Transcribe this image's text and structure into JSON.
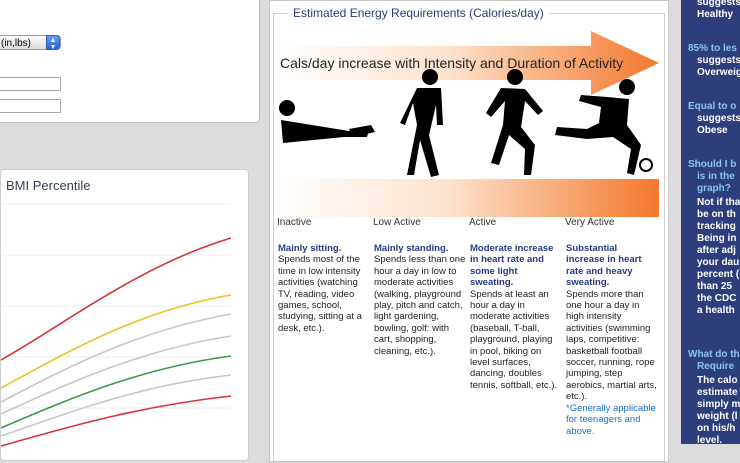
{
  "input_panel": {
    "units_select": "(in,lbs)"
  },
  "bmi_chart": {
    "title": "BMI Percentile"
  },
  "energy": {
    "legend_title": "Estimated Energy Requirements (Calories/day)",
    "banner": "Cals/day increase with Intensity and Duration of Activity",
    "levels": [
      {
        "name": "Inactive",
        "head": "Mainly sitting.",
        "body": "Spends most of the time in low intensity activities (watching TV, reading, video games, school, studying, sitting at a desk, etc.).",
        "note": ""
      },
      {
        "name": "Low Active",
        "head": "Mainly standing.",
        "body": "Spends less than one hour a day in low to moderate activities (walking, playground play, pitch and catch, light gardening, bowling, golf: with cart, shopping, cleaning, etc.).",
        "note": ""
      },
      {
        "name": "Active",
        "head": "Moderate increase in heart rate and some light sweating.",
        "body": "Spends at least an hour a day in moderate activities (baseball, T-ball, playground, playing in pool, biking on level surfaces, dancing, doubles tennis, softball, etc.).",
        "note": ""
      },
      {
        "name": "Very Active",
        "head": "Substantial increase in heart rate and heavy sweating.",
        "body": "Spends more than one hour a day in high intensity activities (swimming laps, competitive: basketball football soccer, running, rope jumping, step aerobics, martial arts, etc.).",
        "note": "*Generally applicable for teenagers and above."
      }
    ]
  },
  "sidebar": {
    "l1": "suggests",
    "l2": "Healthy",
    "l3": "85% to les",
    "l4": "suggests",
    "l5": "Overweig",
    "l6": "Equal to o",
    "l7": "suggests",
    "l8": "Obese",
    "l9": "Should I b",
    "l10": "is in the",
    "l11": "graph?",
    "l12": "Not if tha",
    "l13": "be on th",
    "l14": "tracking",
    "l15": "Being in",
    "l16": "after adj",
    "l17": "your dau",
    "l18": "percent (",
    "l19": "than 25",
    "l20": "the CDC",
    "l21": "a health",
    "l22": "What do th",
    "l23": "Require",
    "l24": "The calo",
    "l25": "estimate",
    "l26": "simply m",
    "l27": "weight (l",
    "l28": "on his/h",
    "l29": "level."
  },
  "colors": {
    "curve_top": "#d4353a",
    "curve_yellow": "#ecc22a",
    "curve_gray": "#c6c6c6",
    "curve_green": "#3a9a45",
    "sidebar_bg": "#2c3e7c",
    "arrow": "#f4772c"
  }
}
